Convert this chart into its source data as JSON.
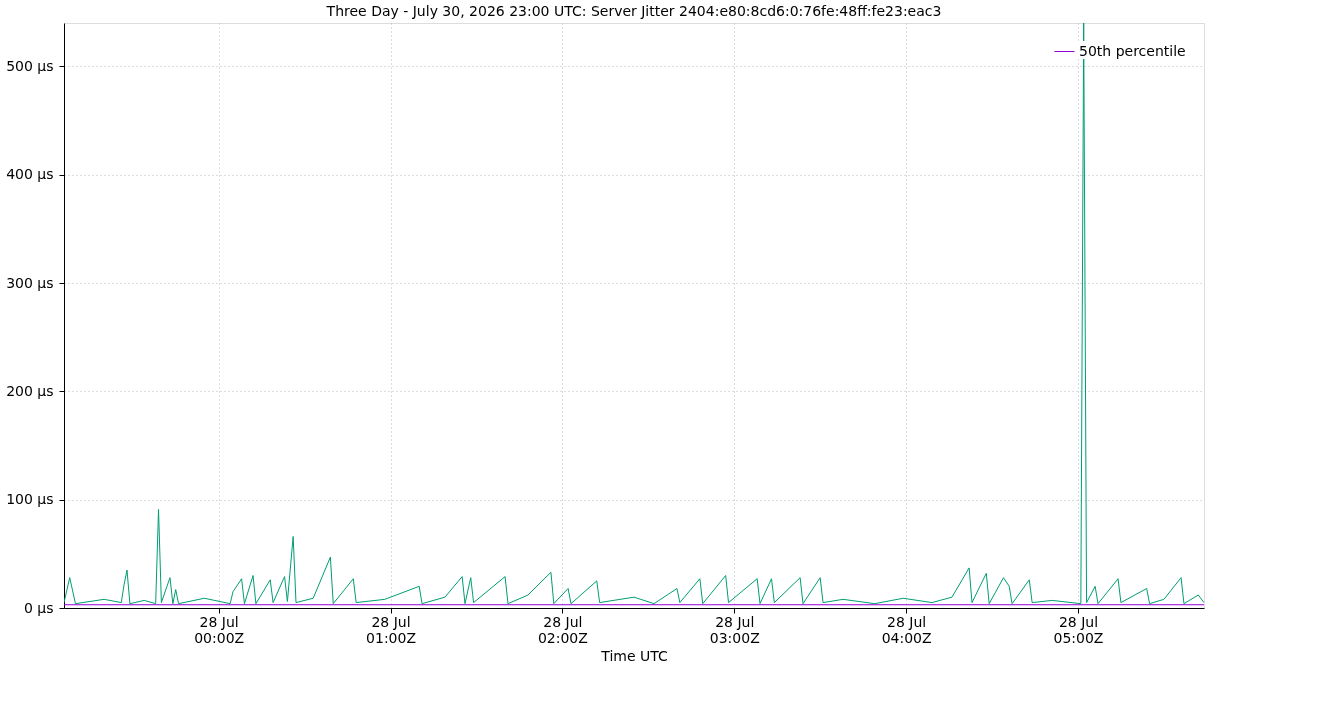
{
  "chart_data": {
    "type": "line",
    "title": "Three Day - July 30, 2026 23:00 UTC: Server Jitter 2404:e80:8cd6:0:76fe:48ff:fe23:eac3",
    "xlabel": "Time UTC",
    "xlim": [
      "2026-07-27T23:06",
      "2026-07-28T05:44"
    ],
    "ylim": [
      0,
      540
    ],
    "xticks": [
      {
        "value": "2026-07-28T00:00",
        "label": "28 Jul\n00:00Z"
      },
      {
        "value": "2026-07-28T01:00",
        "label": "28 Jul\n01:00Z"
      },
      {
        "value": "2026-07-28T02:00",
        "label": "28 Jul\n02:00Z"
      },
      {
        "value": "2026-07-28T03:00",
        "label": "28 Jul\n03:00Z"
      },
      {
        "value": "2026-07-28T04:00",
        "label": "28 Jul\n04:00Z"
      },
      {
        "value": "2026-07-28T05:00",
        "label": "28 Jul\n05:00Z"
      }
    ],
    "yticks": [
      {
        "value": 0,
        "label": "0 µs"
      },
      {
        "value": 100,
        "label": "100 µs"
      },
      {
        "value": 200,
        "label": "200 µs"
      },
      {
        "value": 300,
        "label": "300 µs"
      },
      {
        "value": 400,
        "label": "400 µs"
      },
      {
        "value": 500,
        "label": "500 µs"
      }
    ],
    "grid": true,
    "legend": "top right",
    "line_style": "solid",
    "marker": "none",
    "series": [
      {
        "color": "#009e73",
        "x": [
          "2026-07-27T23:06",
          "2026-07-27T23:08",
          "2026-07-27T23:10",
          "2026-07-27T23:20",
          "2026-07-27T23:26",
          "2026-07-27T23:27",
          "2026-07-27T23:28",
          "2026-07-27T23:29",
          "2026-07-27T23:34",
          "2026-07-27T23:38",
          "2026-07-27T23:39",
          "2026-07-27T23:40",
          "2026-07-27T23:43",
          "2026-07-27T23:44",
          "2026-07-27T23:45",
          "2026-07-27T23:46",
          "2026-07-27T23:55",
          "2026-07-28T00:04",
          "2026-07-28T00:05",
          "2026-07-28T00:08",
          "2026-07-28T00:09",
          "2026-07-28T00:12",
          "2026-07-28T00:13",
          "2026-07-28T00:18",
          "2026-07-28T00:19",
          "2026-07-28T00:23",
          "2026-07-28T00:24",
          "2026-07-28T00:26",
          "2026-07-28T00:27",
          "2026-07-28T00:33",
          "2026-07-28T00:39",
          "2026-07-28T00:40",
          "2026-07-28T00:47",
          "2026-07-28T00:48",
          "2026-07-28T00:58",
          "2026-07-28T01:10",
          "2026-07-28T01:11",
          "2026-07-28T01:19",
          "2026-07-28T01:25",
          "2026-07-28T01:26",
          "2026-07-28T01:28",
          "2026-07-28T01:29",
          "2026-07-28T01:40",
          "2026-07-28T01:41",
          "2026-07-28T01:48",
          "2026-07-28T01:56",
          "2026-07-28T01:57",
          "2026-07-28T02:02",
          "2026-07-28T02:03",
          "2026-07-28T02:12",
          "2026-07-28T02:13",
          "2026-07-28T02:25",
          "2026-07-28T02:32",
          "2026-07-28T02:40",
          "2026-07-28T02:41",
          "2026-07-28T02:48",
          "2026-07-28T02:49",
          "2026-07-28T02:57",
          "2026-07-28T02:58",
          "2026-07-28T03:08",
          "2026-07-28T03:09",
          "2026-07-28T03:13",
          "2026-07-28T03:14",
          "2026-07-28T03:23",
          "2026-07-28T03:24",
          "2026-07-28T03:30",
          "2026-07-28T03:31",
          "2026-07-28T03:38",
          "2026-07-28T03:49",
          "2026-07-28T03:59",
          "2026-07-28T04:09",
          "2026-07-28T04:16",
          "2026-07-28T04:22",
          "2026-07-28T04:23",
          "2026-07-28T04:28",
          "2026-07-28T04:29",
          "2026-07-28T04:34",
          "2026-07-28T04:36",
          "2026-07-28T04:37",
          "2026-07-28T04:43",
          "2026-07-28T04:44",
          "2026-07-28T04:51",
          "2026-07-28T05:01",
          "2026-07-28T05:02",
          "2026-07-28T05:03",
          "2026-07-28T05:06",
          "2026-07-28T05:07",
          "2026-07-28T05:14",
          "2026-07-28T05:15",
          "2026-07-28T05:24",
          "2026-07-28T05:25",
          "2026-07-28T05:30",
          "2026-07-28T05:36",
          "2026-07-28T05:37",
          "2026-07-28T05:42",
          "2026-07-28T05:44"
        ],
        "values": [
          5,
          28,
          4,
          8,
          5,
          22,
          35,
          4,
          7,
          4,
          91,
          5,
          28,
          4,
          17,
          4,
          9,
          4,
          15,
          27,
          4,
          30,
          4,
          26,
          5,
          29,
          6,
          66,
          5,
          9,
          47,
          4,
          27,
          5,
          8,
          20,
          4,
          10,
          29,
          4,
          28,
          5,
          29,
          4,
          12,
          33,
          4,
          18,
          4,
          25,
          5,
          10,
          4,
          18,
          5,
          27,
          4,
          30,
          5,
          27,
          4,
          27,
          5,
          28,
          4,
          28,
          5,
          8,
          4,
          9,
          5,
          10,
          37,
          5,
          32,
          4,
          28,
          20,
          4,
          26,
          5,
          7,
          4,
          540,
          5,
          20,
          4,
          27,
          5,
          18,
          4,
          8,
          28,
          4,
          12,
          5
        ]
      },
      {
        "name": "50th percentile",
        "color": "#9400d3",
        "x": [
          "2026-07-27T23:06",
          "2026-07-28T05:44"
        ],
        "values": [
          3,
          3
        ]
      }
    ]
  }
}
